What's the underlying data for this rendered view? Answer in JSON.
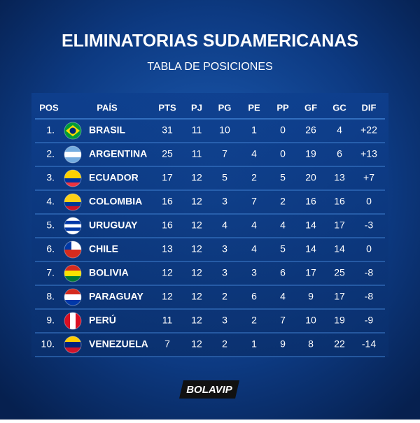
{
  "header": {
    "title": "ELIMINATORIAS SUDAMERICANAS",
    "subtitle": "TABLA DE POSICIONES"
  },
  "table": {
    "columns": [
      "POS",
      "PAÍS",
      "PTS",
      "PJ",
      "PG",
      "PE",
      "PP",
      "GF",
      "GC",
      "DIF"
    ],
    "rows": [
      [
        "1.",
        "BRASIL",
        "31",
        "11",
        "10",
        "1",
        "0",
        "26",
        "4",
        "+22"
      ],
      [
        "2.",
        "ARGENTINA",
        "25",
        "11",
        "7",
        "4",
        "0",
        "19",
        "6",
        "+13"
      ],
      [
        "3.",
        "ECUADOR",
        "17",
        "12",
        "5",
        "2",
        "5",
        "20",
        "13",
        "+7"
      ],
      [
        "4.",
        "COLOMBIA",
        "16",
        "12",
        "3",
        "7",
        "2",
        "16",
        "16",
        "0"
      ],
      [
        "5.",
        "URUGUAY",
        "16",
        "12",
        "4",
        "4",
        "4",
        "14",
        "17",
        "-3"
      ],
      [
        "6.",
        "CHILE",
        "13",
        "12",
        "3",
        "4",
        "5",
        "14",
        "14",
        "0"
      ],
      [
        "7.",
        "BOLIVIA",
        "12",
        "12",
        "3",
        "3",
        "6",
        "17",
        "25",
        "-8"
      ],
      [
        "8.",
        "PARAGUAY",
        "12",
        "12",
        "2",
        "6",
        "4",
        "9",
        "17",
        "-8"
      ],
      [
        "9.",
        "PERÚ",
        "11",
        "12",
        "3",
        "2",
        "7",
        "10",
        "19",
        "-9"
      ],
      [
        "10.",
        "VENEZUELA",
        "7",
        "12",
        "2",
        "1",
        "9",
        "8",
        "22",
        "-14"
      ]
    ]
  },
  "footer": {
    "logo": "BOLAVIP"
  }
}
